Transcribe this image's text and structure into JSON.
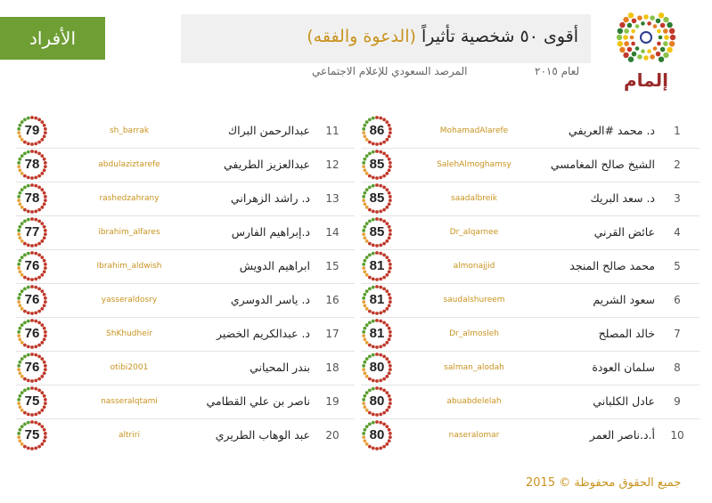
{
  "header": {
    "title_main": "أقوى ٥٠ شخصية تأثيراً",
    "title_highlight": "(الدعوة والفقه)",
    "subtitle_year": "لعام ٢٠١٥",
    "subtitle_org": "المرصد السعودي للإعلام الاجتماعي",
    "section_badge": "الأفراد",
    "logo_text": "إلمام"
  },
  "colors": {
    "accent_gold": "#c8931e",
    "badge_green": "#6f9e35",
    "ring_red": "#c0392b",
    "ring_green": "#5a9e2f"
  },
  "right_column": [
    {
      "rank": "1",
      "name": "د. محمد #العريفي",
      "handle": "MohamadAlarefe",
      "score": 86
    },
    {
      "rank": "2",
      "name": "الشيخ صالح المغامسي",
      "handle": "SalehAlmoghamsy",
      "score": 85
    },
    {
      "rank": "3",
      "name": "د. سعد البريك",
      "handle": "saadalbreik",
      "score": 85
    },
    {
      "rank": "4",
      "name": "عائض القرني",
      "handle": "Dr_alqarnee",
      "score": 85
    },
    {
      "rank": "5",
      "name": "محمد صالح المنجد",
      "handle": "almonajjid",
      "score": 81
    },
    {
      "rank": "6",
      "name": "سعود الشريم",
      "handle": "saudalshureem",
      "score": 81
    },
    {
      "rank": "7",
      "name": "خالد المصلح",
      "handle": "Dr_almosleh",
      "score": 81
    },
    {
      "rank": "8",
      "name": "سلمان العودة",
      "handle": "salman_alodah",
      "score": 80
    },
    {
      "rank": "9",
      "name": "عادل الكلباني",
      "handle": "abuabdelelah",
      "score": 80
    },
    {
      "rank": "10",
      "name": "أ.د.ناصر العمر",
      "handle": "naseralomar",
      "score": 80
    }
  ],
  "left_column": [
    {
      "rank": "11",
      "name": "عبدالرحمن البراك",
      "handle": "sh_barrak",
      "score": 79
    },
    {
      "rank": "12",
      "name": "عبدالعزيز الطريفي",
      "handle": "abdulaziztarefe",
      "score": 78
    },
    {
      "rank": "13",
      "name": "د. راشد الزهراني",
      "handle": "rashedzahrany",
      "score": 78
    },
    {
      "rank": "14",
      "name": "د.إبراهيم الفارس",
      "handle": "ibrahim_alfares",
      "score": 77
    },
    {
      "rank": "15",
      "name": "ابراهيم الدويش",
      "handle": "Ibrahim_aldwish",
      "score": 76
    },
    {
      "rank": "16",
      "name": "د. ياسر الدوسري",
      "handle": "yasseraldosry",
      "score": 76
    },
    {
      "rank": "17",
      "name": "د. عبدالكريم الخضير",
      "handle": "ShKhudheir",
      "score": 76
    },
    {
      "rank": "18",
      "name": "بندر المحياني",
      "handle": "otibi2001",
      "score": 76
    },
    {
      "rank": "19",
      "name": "ناصر بن علي القطامي",
      "handle": "nasseralqtami",
      "score": 75
    },
    {
      "rank": "20",
      "name": "عبد الوهاب الطريري",
      "handle": "altriri",
      "score": 75
    }
  ],
  "footer": {
    "copyright": "جميع الحقوق محفوظة © 2015"
  }
}
